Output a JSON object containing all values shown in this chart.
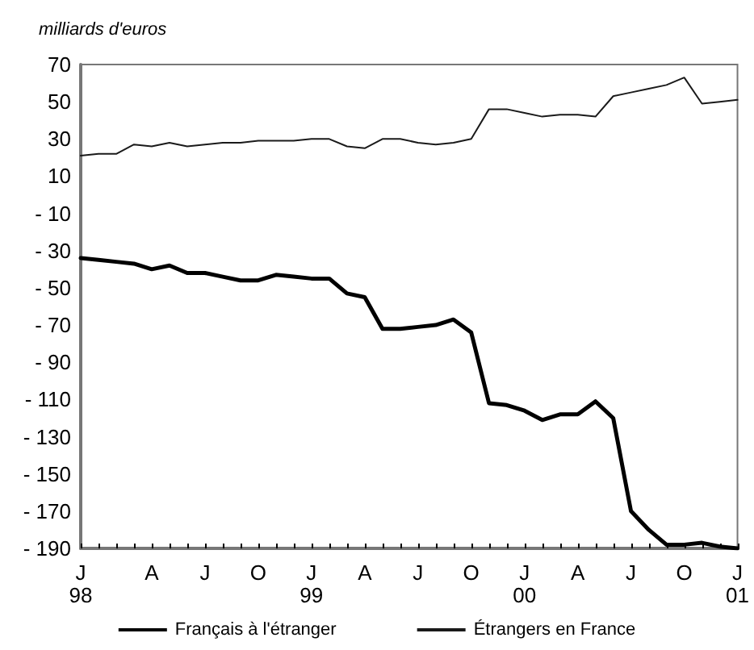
{
  "chart_data": {
    "type": "line",
    "ylabel": "milliards d'euros",
    "categories": [
      "J\n98",
      null,
      null,
      null,
      "A",
      null,
      null,
      "J",
      null,
      null,
      "O",
      null,
      null,
      "J\n99",
      null,
      null,
      "A",
      null,
      null,
      "J",
      null,
      null,
      "O",
      null,
      null,
      "J\n00",
      null,
      null,
      "A",
      null,
      null,
      "J",
      null,
      null,
      "O",
      null,
      null,
      "J\n01"
    ],
    "series": [
      {
        "name": "Français à l'étranger",
        "color": "#000000",
        "values": [
          -34,
          -35,
          -36,
          -37,
          -40,
          -38,
          -42,
          -42,
          -44,
          -46,
          -46,
          -43,
          -44,
          -45,
          -45,
          -53,
          -55,
          -72,
          -72,
          -71,
          -70,
          -67,
          -74,
          -112,
          -113,
          -116,
          -121,
          -118,
          -118,
          -111,
          -120,
          -170,
          -180,
          -188,
          -188,
          -187,
          -189,
          -190
        ]
      },
      {
        "name": "Étrangers en France",
        "color": "#1a1a1a",
        "values": [
          21,
          22,
          22,
          27,
          26,
          28,
          26,
          27,
          28,
          28,
          29,
          29,
          29,
          30,
          30,
          26,
          25,
          30,
          30,
          28,
          27,
          28,
          30,
          46,
          46,
          44,
          42,
          43,
          43,
          42,
          53,
          55,
          57,
          59,
          63,
          49,
          50,
          51
        ]
      }
    ],
    "ylim": [
      -190,
      70
    ],
    "yticks": [
      {
        "value": -190,
        "label": "- 190"
      },
      {
        "value": -170,
        "label": "- 170"
      },
      {
        "value": -150,
        "label": "- 150"
      },
      {
        "value": -130,
        "label": "- 130"
      },
      {
        "value": -110,
        "label": "- 110"
      },
      {
        "value": -90,
        "label": "- 90"
      },
      {
        "value": -70,
        "label": "- 70"
      },
      {
        "value": -50,
        "label": "- 50"
      },
      {
        "value": -30,
        "label": "- 30"
      },
      {
        "value": -10,
        "label": "- 10"
      },
      10,
      30,
      50,
      70
    ],
    "grid": false,
    "legend": "bottom",
    "marker": "none",
    "line_style": "solid"
  }
}
